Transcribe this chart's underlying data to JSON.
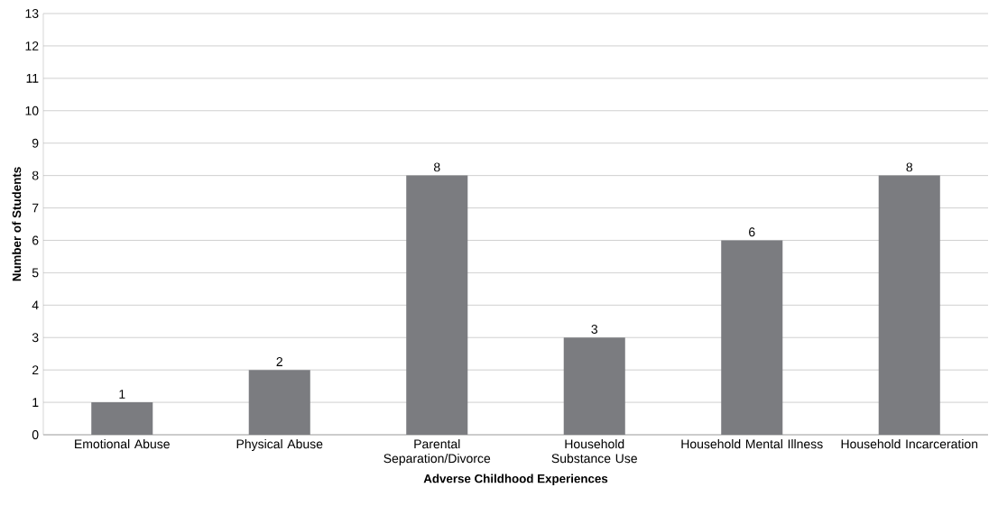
{
  "chart_data": {
    "type": "bar",
    "xlabel": "Adverse Childhood Experiences",
    "ylabel": "Number of Students",
    "categories": [
      "Emotional Abuse",
      "Physical Abuse",
      "Parental Separation/Divorce",
      "Household Substance Use",
      "Household Mental Illness",
      "Household Incarceration"
    ],
    "values": [
      1,
      2,
      8,
      3,
      6,
      8
    ],
    "color": "#7b7c80",
    "ylim": [
      0,
      13
    ],
    "yticks": [
      0,
      1,
      2,
      3,
      4,
      5,
      6,
      7,
      8,
      9,
      10,
      11,
      12,
      13
    ],
    "grid": "y",
    "data_labels": true
  }
}
